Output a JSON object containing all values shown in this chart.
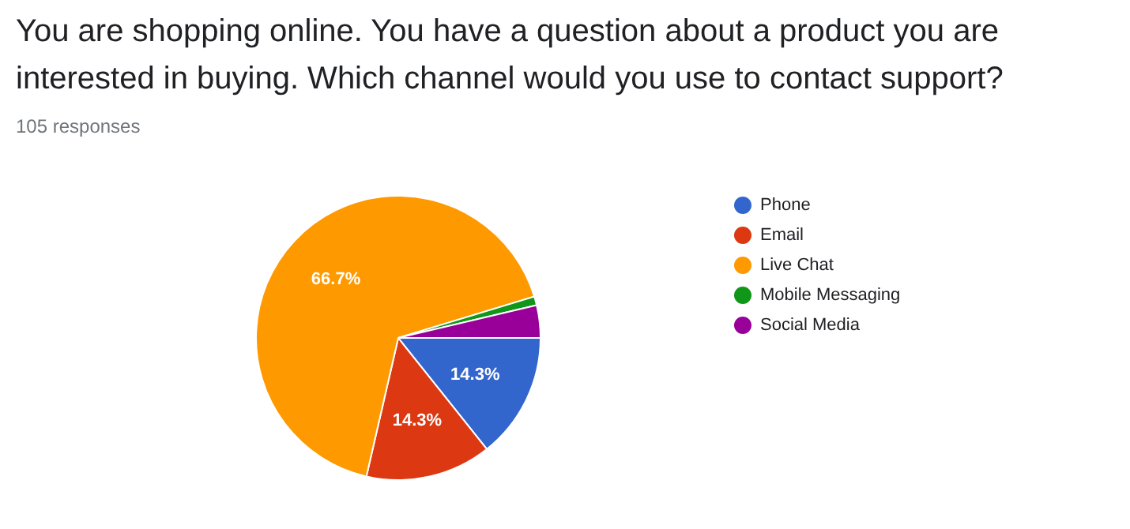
{
  "chart_data": {
    "type": "pie",
    "title": "You are shopping online. You have a question about a product you are interested in buying. Which channel would you use to contact support?",
    "subtitle": "105 responses",
    "categories": [
      "Phone",
      "Email",
      "Live Chat",
      "Mobile Messaging",
      "Social Media"
    ],
    "values": [
      14.3,
      14.3,
      66.7,
      1,
      3.7
    ],
    "colors": [
      "#3366cc",
      "#dc3912",
      "#ff9900",
      "#109618",
      "#990099"
    ],
    "value_labels": [
      "14.3%",
      "14.3%",
      "66.7%",
      null,
      null
    ],
    "legend": "right"
  }
}
